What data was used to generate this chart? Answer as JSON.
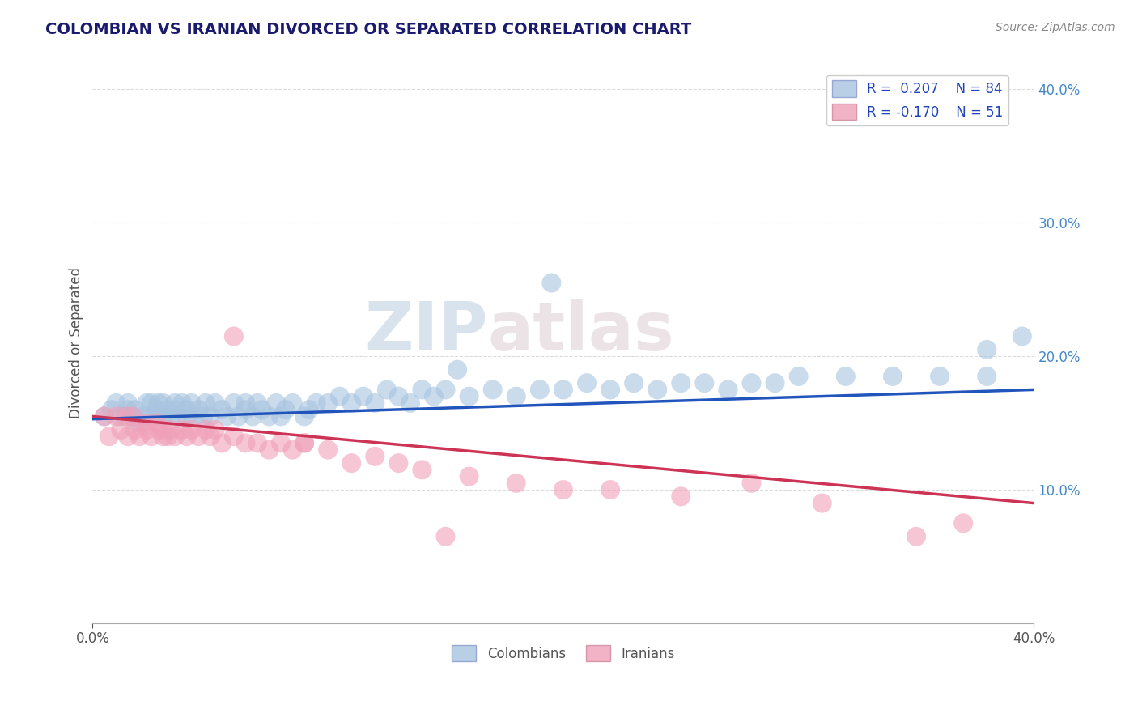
{
  "title": "COLOMBIAN VS IRANIAN DIVORCED OR SEPARATED CORRELATION CHART",
  "source": "Source: ZipAtlas.com",
  "ylabel": "Divorced or Separated",
  "x_min": 0.0,
  "x_max": 0.4,
  "y_min": 0.0,
  "y_max": 0.42,
  "y_ticks": [
    0.1,
    0.2,
    0.3,
    0.4
  ],
  "legend_r1": "R =  0.207",
  "legend_n1": "N = 84",
  "legend_r2": "R = -0.170",
  "legend_n2": "N = 51",
  "blue_color": "#a8c4e0",
  "pink_color": "#f0a0b8",
  "blue_line_color": "#2255bb",
  "pink_line_color": "#cc3355",
  "watermark_zip": "ZIP",
  "watermark_atlas": "atlas",
  "title_color": "#1a1a6e",
  "colombians_label": "Colombians",
  "iranians_label": "Iranians",
  "blue_scatter_x": [
    0.005,
    0.008,
    0.01,
    0.012,
    0.015,
    0.015,
    0.017,
    0.018,
    0.02,
    0.022,
    0.023,
    0.025,
    0.025,
    0.027,
    0.028,
    0.028,
    0.03,
    0.03,
    0.032,
    0.033,
    0.035,
    0.035,
    0.036,
    0.038,
    0.04,
    0.04,
    0.042,
    0.043,
    0.045,
    0.047,
    0.048,
    0.05,
    0.052,
    0.055,
    0.057,
    0.06,
    0.062,
    0.065,
    0.065,
    0.068,
    0.07,
    0.072,
    0.075,
    0.078,
    0.08,
    0.082,
    0.085,
    0.09,
    0.092,
    0.095,
    0.1,
    0.105,
    0.11,
    0.115,
    0.12,
    0.125,
    0.13,
    0.135,
    0.14,
    0.145,
    0.15,
    0.16,
    0.17,
    0.18,
    0.19,
    0.2,
    0.21,
    0.22,
    0.23,
    0.24,
    0.25,
    0.26,
    0.27,
    0.28,
    0.29,
    0.3,
    0.32,
    0.34,
    0.36,
    0.38,
    0.195,
    0.155,
    0.38,
    0.395
  ],
  "blue_scatter_y": [
    0.155,
    0.16,
    0.165,
    0.155,
    0.16,
    0.165,
    0.155,
    0.16,
    0.15,
    0.155,
    0.165,
    0.155,
    0.165,
    0.16,
    0.155,
    0.165,
    0.155,
    0.165,
    0.16,
    0.155,
    0.165,
    0.16,
    0.155,
    0.165,
    0.155,
    0.16,
    0.165,
    0.155,
    0.16,
    0.155,
    0.165,
    0.155,
    0.165,
    0.16,
    0.155,
    0.165,
    0.155,
    0.165,
    0.16,
    0.155,
    0.165,
    0.16,
    0.155,
    0.165,
    0.155,
    0.16,
    0.165,
    0.155,
    0.16,
    0.165,
    0.165,
    0.17,
    0.165,
    0.17,
    0.165,
    0.175,
    0.17,
    0.165,
    0.175,
    0.17,
    0.175,
    0.17,
    0.175,
    0.17,
    0.175,
    0.175,
    0.18,
    0.175,
    0.18,
    0.175,
    0.18,
    0.18,
    0.175,
    0.18,
    0.18,
    0.185,
    0.185,
    0.185,
    0.185,
    0.185,
    0.255,
    0.19,
    0.205,
    0.215
  ],
  "pink_scatter_x": [
    0.005,
    0.007,
    0.01,
    0.012,
    0.014,
    0.015,
    0.017,
    0.018,
    0.02,
    0.022,
    0.023,
    0.025,
    0.027,
    0.028,
    0.03,
    0.03,
    0.032,
    0.033,
    0.035,
    0.038,
    0.04,
    0.042,
    0.045,
    0.048,
    0.05,
    0.052,
    0.055,
    0.06,
    0.065,
    0.07,
    0.075,
    0.08,
    0.085,
    0.09,
    0.1,
    0.11,
    0.12,
    0.13,
    0.14,
    0.15,
    0.16,
    0.18,
    0.2,
    0.22,
    0.25,
    0.28,
    0.31,
    0.35,
    0.37,
    0.06,
    0.09
  ],
  "pink_scatter_y": [
    0.155,
    0.14,
    0.155,
    0.145,
    0.155,
    0.14,
    0.155,
    0.145,
    0.14,
    0.15,
    0.145,
    0.14,
    0.15,
    0.145,
    0.14,
    0.145,
    0.14,
    0.145,
    0.14,
    0.145,
    0.14,
    0.145,
    0.14,
    0.145,
    0.14,
    0.145,
    0.135,
    0.14,
    0.135,
    0.135,
    0.13,
    0.135,
    0.13,
    0.135,
    0.13,
    0.12,
    0.125,
    0.12,
    0.115,
    0.065,
    0.11,
    0.105,
    0.1,
    0.1,
    0.095,
    0.105,
    0.09,
    0.065,
    0.075,
    0.215,
    0.135
  ],
  "blue_trendline_x": [
    0.0,
    0.4
  ],
  "blue_trendline_y": [
    0.153,
    0.175
  ],
  "pink_trendline_x": [
    0.0,
    0.4
  ],
  "pink_trendline_y": [
    0.155,
    0.09
  ],
  "grid_color": "#cccccc",
  "grid_alpha": 0.7
}
